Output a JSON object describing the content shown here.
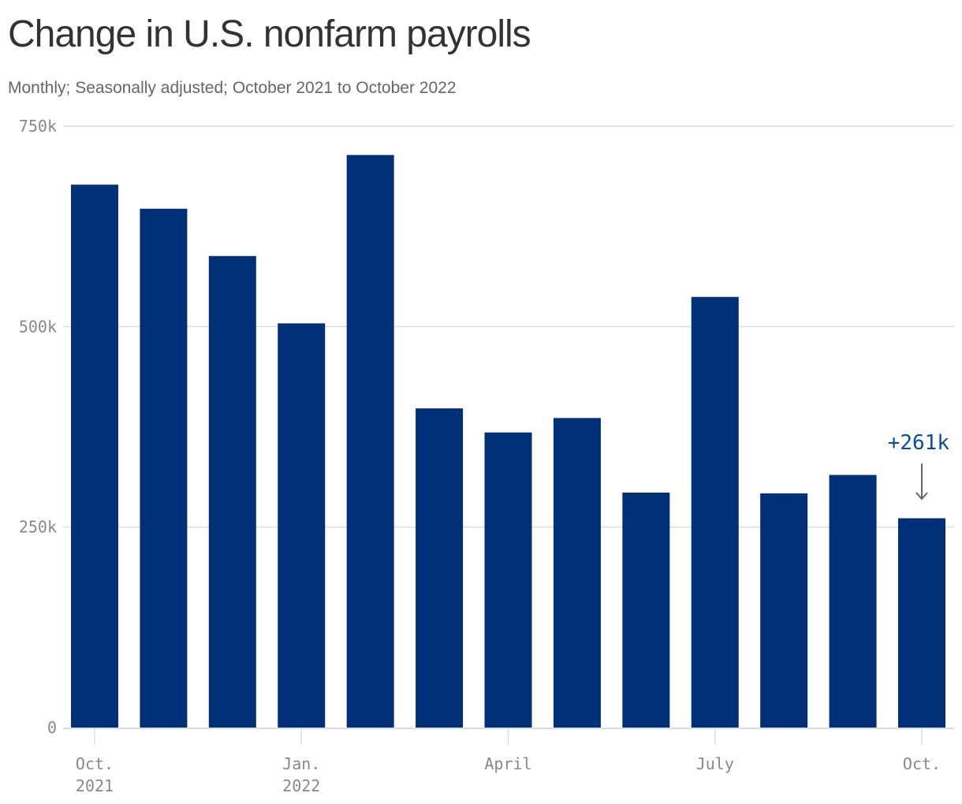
{
  "title": "Change in U.S. nonfarm payrolls",
  "subtitle": "Monthly; Seasonally adjusted; October 2021 to October 2022",
  "colors": {
    "bar": "#003178",
    "grid": "#dddddd",
    "axis_text": "#888888",
    "annotation": "#0b4ba0",
    "arrow": "#666666"
  },
  "chart_data": {
    "type": "bar",
    "title": "Change in U.S. nonfarm payrolls",
    "subtitle": "Monthly; Seasonally adjusted; October 2021 to October 2022",
    "categories": [
      "Oct. 2021",
      "Nov. 2021",
      "Dec. 2021",
      "Jan. 2022",
      "Feb. 2022",
      "Mar. 2022",
      "Apr. 2022",
      "May 2022",
      "Jun. 2022",
      "Jul. 2022",
      "Aug. 2022",
      "Sep. 2022",
      "Oct. 2022"
    ],
    "values": [
      677,
      647,
      588,
      504,
      714,
      398,
      368,
      386,
      293,
      537,
      292,
      315,
      261
    ],
    "value_unit": "k",
    "ylim": [
      0,
      750
    ],
    "yticks": [
      0,
      250,
      500,
      750
    ],
    "ytick_labels": [
      "0",
      "250k",
      "500k",
      "750k"
    ],
    "xticks": [
      {
        "index": 0,
        "lines": [
          "Oct.",
          "2021"
        ]
      },
      {
        "index": 3,
        "lines": [
          "Jan.",
          "2022"
        ]
      },
      {
        "index": 6,
        "lines": [
          "April"
        ]
      },
      {
        "index": 9,
        "lines": [
          "July"
        ]
      },
      {
        "index": 12,
        "lines": [
          "Oct."
        ]
      }
    ],
    "grid": true,
    "legend": "none",
    "annotation": {
      "index": 12,
      "text": "+261k"
    }
  }
}
